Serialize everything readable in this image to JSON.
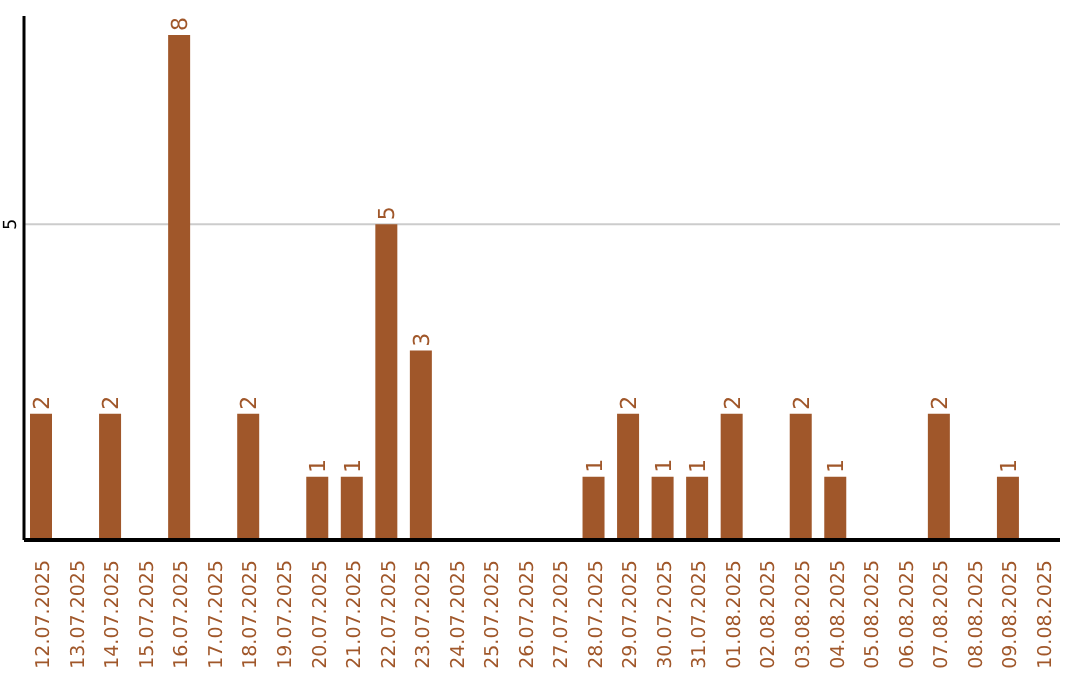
{
  "chart_data": {
    "type": "bar",
    "categories": [
      "12.07.2025",
      "13.07.2025",
      "14.07.2025",
      "15.07.2025",
      "16.07.2025",
      "17.07.2025",
      "18.07.2025",
      "19.07.2025",
      "20.07.2025",
      "21.07.2025",
      "22.07.2025",
      "23.07.2025",
      "24.07.2025",
      "25.07.2025",
      "26.07.2025",
      "27.07.2025",
      "28.07.2025",
      "29.07.2025",
      "30.07.2025",
      "31.07.2025",
      "01.08.2025",
      "02.08.2025",
      "03.08.2025",
      "04.08.2025",
      "05.08.2025",
      "06.08.2025",
      "07.08.2025",
      "08.08.2025",
      "09.08.2025",
      "10.08.2025"
    ],
    "values": [
      2,
      0,
      2,
      0,
      8,
      0,
      2,
      0,
      1,
      1,
      5,
      3,
      0,
      0,
      0,
      0,
      1,
      2,
      1,
      1,
      2,
      0,
      2,
      1,
      0,
      0,
      2,
      0,
      1,
      0
    ],
    "value_labels": [
      "2",
      null,
      "2",
      null,
      "8",
      null,
      "2",
      null,
      "1",
      "1",
      "5",
      "3",
      null,
      null,
      null,
      null,
      "1",
      "2",
      "1",
      "1",
      "2",
      null,
      "2",
      "1",
      null,
      null,
      "2",
      null,
      "1",
      null
    ],
    "color": "#a0572a",
    "ylim": [
      0,
      8.3
    ],
    "yticks": [
      5
    ],
    "grid": "y"
  }
}
